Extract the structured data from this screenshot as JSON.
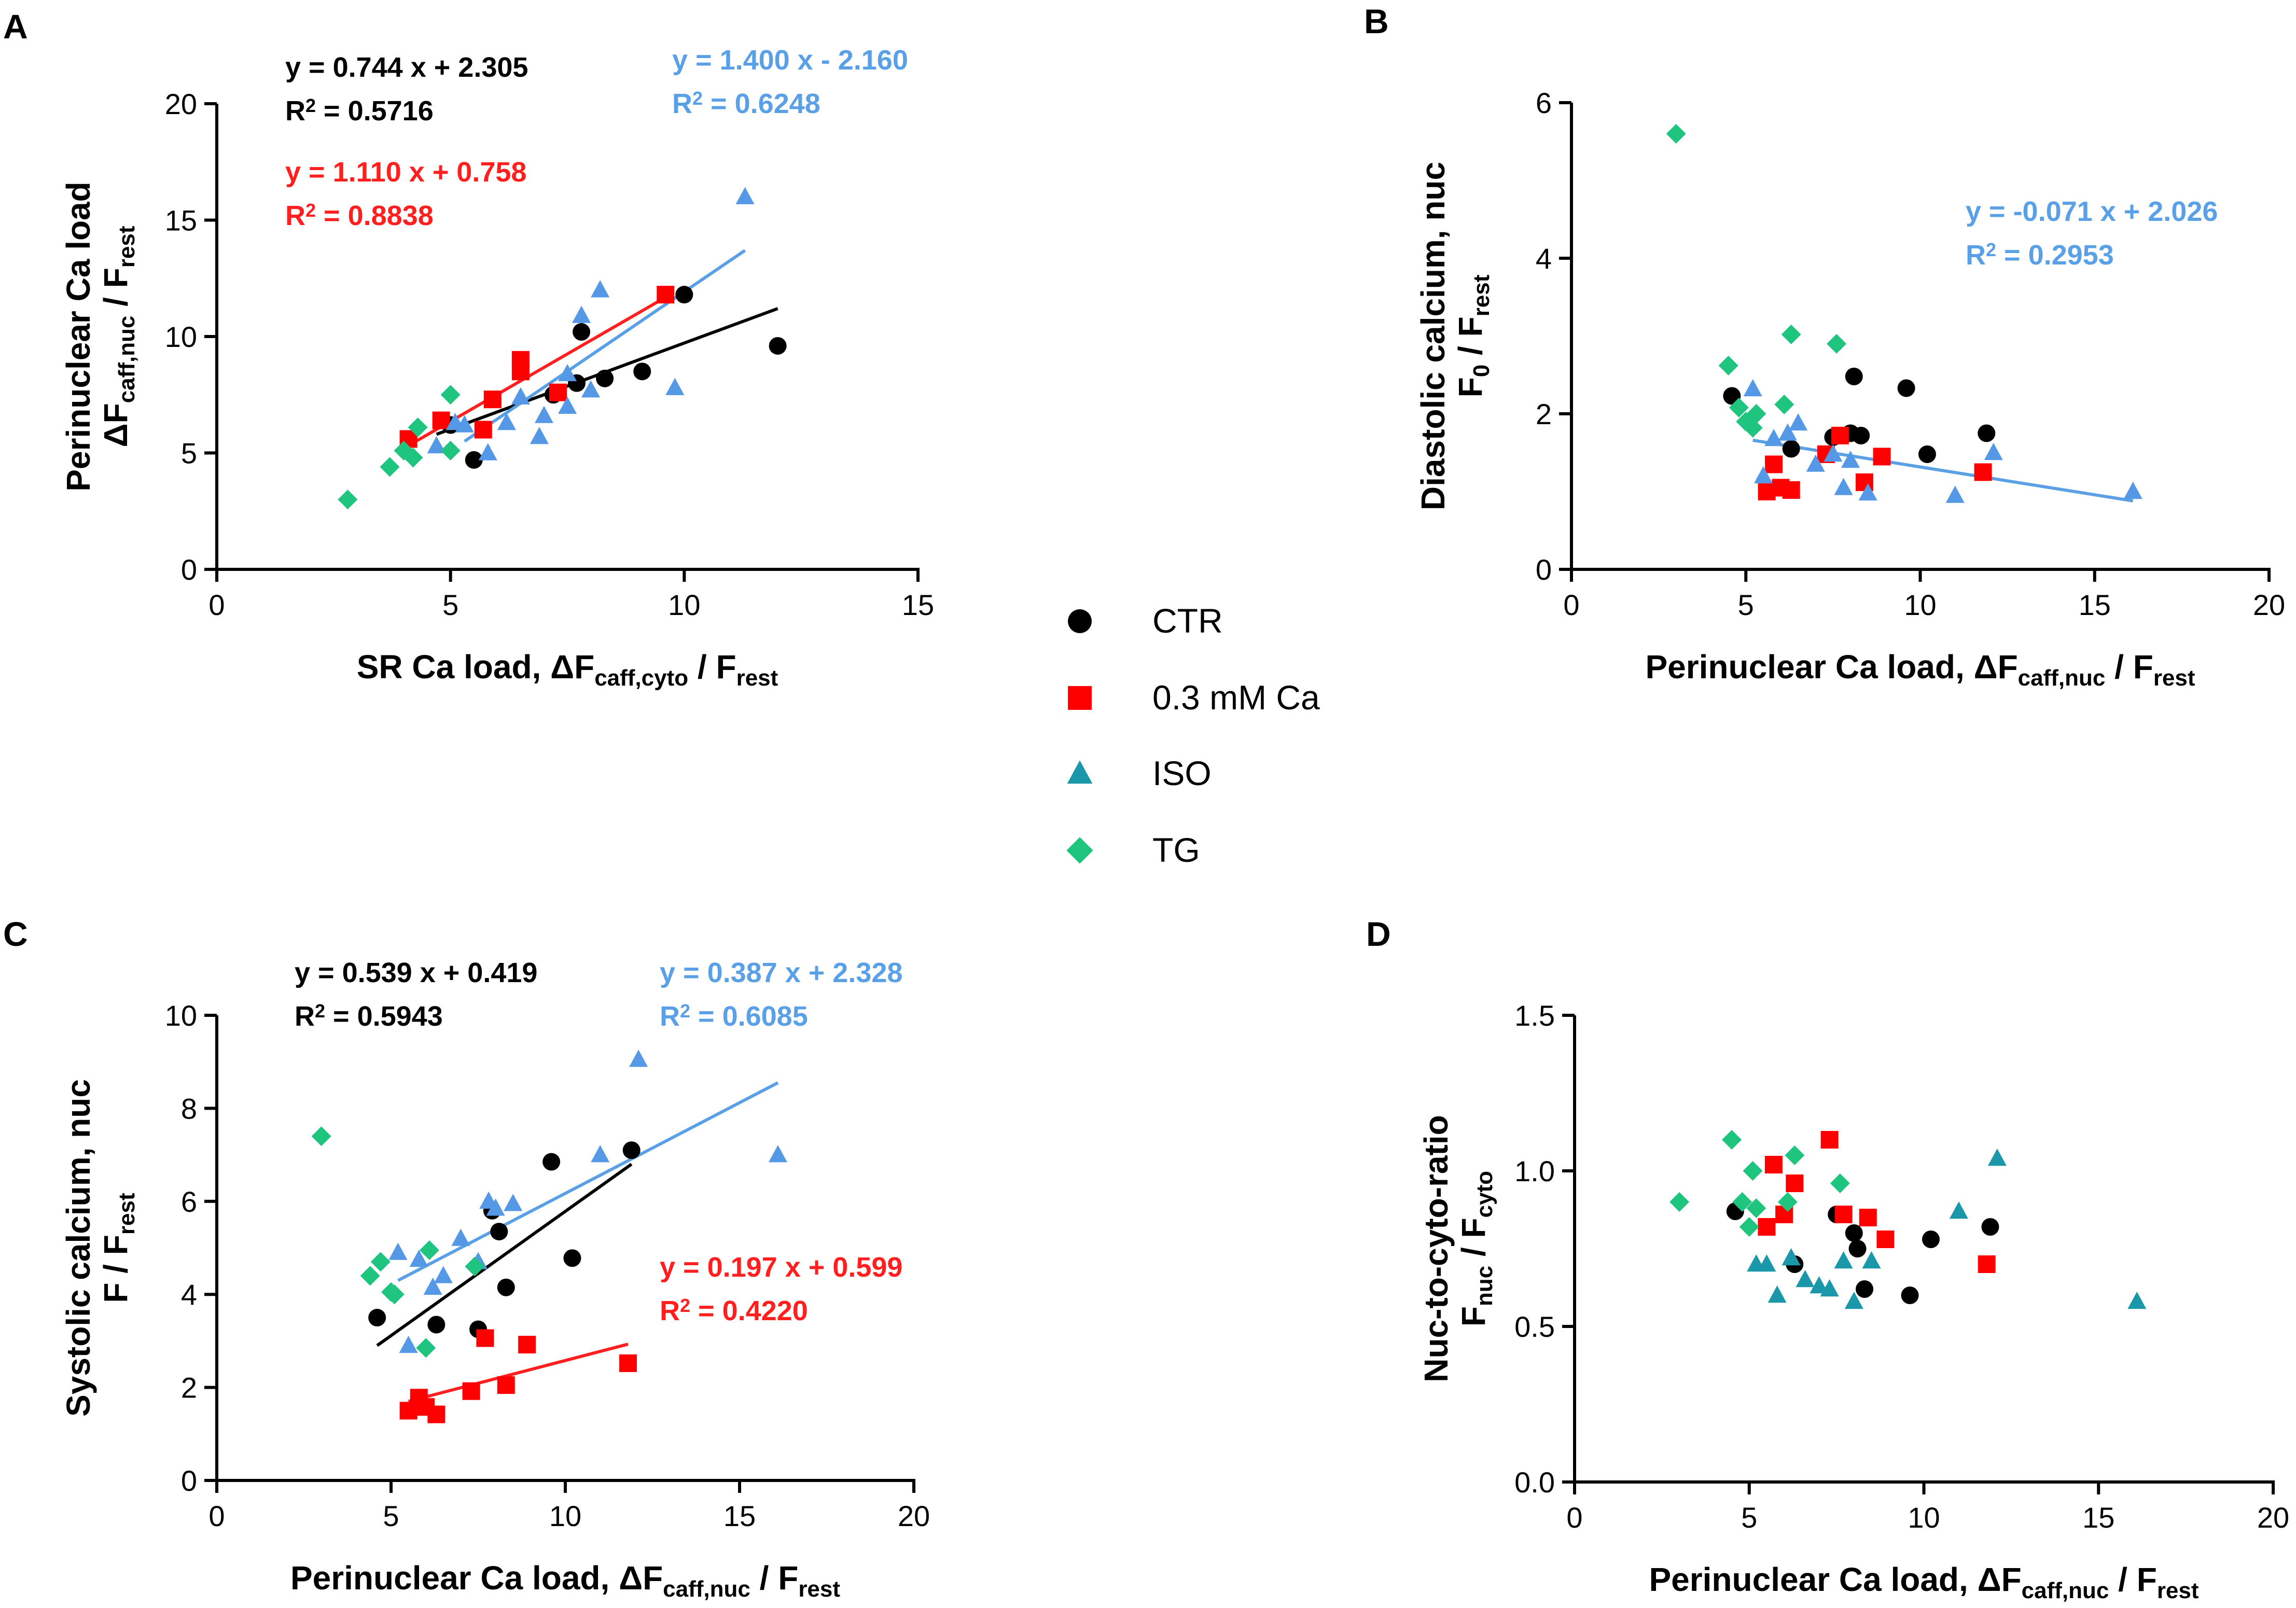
{
  "colors": {
    "ctr": "#000000",
    "ca03": "#ff0000",
    "iso_blue": "#5599e6",
    "iso_teal": "#1a98aa",
    "tg": "#1fc47f",
    "fit_black": "#000000",
    "fit_red": "#ff1f1f",
    "fit_blue": "#5aa0e6"
  },
  "legend": [
    {
      "key": "ctr",
      "label": "CTR",
      "marker": "circle"
    },
    {
      "key": "ca03",
      "label": "0.3 mM Ca",
      "marker": "square"
    },
    {
      "key": "iso",
      "label": "ISO",
      "marker": "triangle"
    },
    {
      "key": "tg",
      "label": "TG",
      "marker": "diamond"
    }
  ],
  "chart_data": [
    {
      "panel": "A",
      "type": "scatter",
      "xlabel": {
        "pre": "SR Ca load, ΔF",
        "sub1": "caff,cyto",
        "mid": " / F",
        "sub2": "rest"
      },
      "ylabel_line1": "Perinuclear Ca load",
      "ylabel_line2": {
        "pre": "ΔF",
        "sub1": "caff,nuc",
        "mid": " / F",
        "sub2": "rest"
      },
      "xlim": [
        0,
        15
      ],
      "ylim": [
        0,
        20
      ],
      "xticks": [
        "0",
        "5",
        "10",
        "15"
      ],
      "yticks": [
        "0",
        "5",
        "10",
        "15",
        "20"
      ],
      "series": [
        {
          "name": "CTR",
          "x": [
            5.0,
            5.5,
            7.2,
            7.7,
            7.8,
            8.3,
            9.1,
            10.0,
            12.0
          ],
          "y": [
            6.2,
            4.7,
            7.5,
            8.0,
            10.2,
            8.2,
            8.5,
            11.8,
            9.6
          ]
        },
        {
          "name": "0.3 mM Ca",
          "x": [
            4.1,
            4.8,
            5.7,
            5.9,
            6.5,
            6.5,
            7.3,
            9.6
          ],
          "y": [
            5.6,
            6.4,
            6.0,
            7.3,
            8.5,
            9.0,
            7.6,
            11.8
          ]
        },
        {
          "name": "ISO",
          "x": [
            4.7,
            5.1,
            5.3,
            5.8,
            6.2,
            6.5,
            6.9,
            7.0,
            7.5,
            7.5,
            7.8,
            8.0,
            8.2,
            9.8,
            11.3
          ],
          "y": [
            5.3,
            6.3,
            6.2,
            5.0,
            6.3,
            7.4,
            5.7,
            6.6,
            7.0,
            8.4,
            10.9,
            7.7,
            12.0,
            7.8,
            16.0
          ]
        },
        {
          "name": "TG",
          "x": [
            2.8,
            3.7,
            4.0,
            4.2,
            4.3,
            5.0,
            5.0
          ],
          "y": [
            3.0,
            4.4,
            5.1,
            4.8,
            6.1,
            5.1,
            7.5
          ]
        }
      ],
      "fits": [
        {
          "series": "CTR",
          "x": [
            4.7,
            12.0
          ],
          "y": [
            5.8,
            11.2
          ],
          "equation": "y = 0.744 x + 2.305",
          "r2_value": " = 0.5716"
        },
        {
          "series": "0.3 mM Ca",
          "x": [
            4.0,
            9.7
          ],
          "y": [
            5.2,
            11.8
          ],
          "equation": "y = 1.110 x + 0.758",
          "r2_value": " = 0.8838"
        },
        {
          "series": "ISO",
          "x": [
            5.3,
            11.3
          ],
          "y": [
            5.5,
            13.7
          ],
          "equation": "y = 1.400 x - 2.160",
          "r2_value": " = 0.6248"
        }
      ]
    },
    {
      "panel": "B",
      "type": "scatter",
      "xlabel": {
        "pre": "Perinuclear Ca load, ΔF",
        "sub1": "caff,nuc",
        "mid": " / F",
        "sub2": "rest"
      },
      "ylabel_line1": "Diastolic calcium, nuc",
      "ylabel_line2": {
        "pre": "F",
        "sub1": "0",
        "mid": " / F",
        "sub2": "rest"
      },
      "xlim": [
        0,
        20
      ],
      "ylim": [
        0,
        6
      ],
      "xticks": [
        "0",
        "5",
        "10",
        "15",
        "20"
      ],
      "yticks": [
        "0",
        "2",
        "4",
        "6"
      ],
      "series": [
        {
          "name": "CTR",
          "x": [
            4.6,
            6.3,
            7.5,
            8.0,
            8.1,
            8.3,
            9.6,
            10.2,
            11.9
          ],
          "y": [
            2.23,
            1.55,
            1.7,
            1.75,
            2.48,
            1.72,
            2.33,
            1.48,
            1.75
          ]
        },
        {
          "name": "0.3 mM Ca",
          "x": [
            5.6,
            5.8,
            6.0,
            6.3,
            7.3,
            7.7,
            8.4,
            8.9,
            11.8
          ],
          "y": [
            1.0,
            1.35,
            1.05,
            1.02,
            1.48,
            1.72,
            1.12,
            1.45,
            1.25
          ]
        },
        {
          "name": "ISO",
          "x": [
            5.2,
            5.5,
            5.8,
            6.2,
            6.5,
            7.0,
            7.5,
            7.8,
            8.0,
            8.5,
            11.0,
            12.1,
            16.1
          ],
          "y": [
            2.32,
            1.2,
            1.68,
            1.75,
            1.88,
            1.35,
            1.48,
            1.05,
            1.4,
            0.98,
            0.95,
            1.5,
            1.0
          ]
        },
        {
          "name": "TG",
          "x": [
            3.0,
            4.5,
            4.8,
            5.0,
            5.2,
            5.3,
            6.1,
            6.3,
            7.6
          ],
          "y": [
            5.6,
            2.62,
            2.08,
            1.9,
            1.82,
            2.0,
            2.12,
            3.02,
            2.9
          ]
        }
      ],
      "fits": [
        {
          "series": "ISO",
          "x": [
            5.2,
            16.1
          ],
          "y": [
            1.66,
            0.88
          ],
          "equation": "y = -0.071 x + 2.026",
          "r2_value": " = 0.2953"
        }
      ]
    },
    {
      "panel": "C",
      "type": "scatter",
      "xlabel": {
        "pre": "Perinuclear Ca load, ΔF",
        "sub1": "caff,nuc",
        "mid": " / F",
        "sub2": "rest"
      },
      "ylabel_line1": "Systolic calcium, nuc",
      "ylabel_line2": {
        "pre": "F / F",
        "sub1": "",
        "mid": "",
        "sub2": "rest"
      },
      "xlim": [
        0,
        20
      ],
      "ylim": [
        0,
        10
      ],
      "xticks": [
        "0",
        "5",
        "10",
        "15",
        "20"
      ],
      "yticks": [
        "0",
        "2",
        "4",
        "6",
        "8",
        "10"
      ],
      "series": [
        {
          "name": "CTR",
          "x": [
            4.6,
            6.3,
            7.5,
            7.9,
            8.1,
            8.3,
            9.6,
            10.2,
            11.9
          ],
          "y": [
            3.5,
            3.35,
            3.25,
            5.8,
            5.35,
            4.15,
            6.85,
            4.78,
            7.1
          ]
        },
        {
          "name": "0.3 mM Ca",
          "x": [
            5.5,
            5.8,
            6.0,
            6.3,
            7.3,
            7.7,
            8.3,
            8.9,
            11.8
          ],
          "y": [
            1.5,
            1.78,
            1.58,
            1.42,
            1.92,
            3.06,
            2.05,
            2.92,
            2.52
          ]
        },
        {
          "name": "ISO",
          "x": [
            5.2,
            5.5,
            5.8,
            6.2,
            6.5,
            7.0,
            7.5,
            7.8,
            8.0,
            8.5,
            11.0,
            12.1,
            16.1
          ],
          "y": [
            4.9,
            2.9,
            4.75,
            4.15,
            4.4,
            5.2,
            4.7,
            6.0,
            5.85,
            5.95,
            7.0,
            9.05,
            7.0
          ]
        },
        {
          "name": "TG",
          "x": [
            3.0,
            4.4,
            4.7,
            5.0,
            5.1,
            6.0,
            6.1,
            7.4
          ],
          "y": [
            7.4,
            4.4,
            4.7,
            4.05,
            4.0,
            2.85,
            4.95,
            4.6
          ]
        }
      ],
      "fits": [
        {
          "series": "CTR",
          "x": [
            4.6,
            11.9
          ],
          "y": [
            2.9,
            6.8
          ],
          "equation": "y = 0.539 x + 0.419",
          "r2_value": " = 0.5943"
        },
        {
          "series": "0.3 mM Ca",
          "x": [
            5.5,
            11.8
          ],
          "y": [
            1.7,
            2.93
          ],
          "equation": "y = 0.197 x + 0.599",
          "r2_value": " = 0.4220"
        },
        {
          "series": "ISO",
          "x": [
            5.2,
            16.1
          ],
          "y": [
            4.3,
            8.55
          ],
          "equation": "y = 0.387 x + 2.328",
          "r2_value": " = 0.6085"
        }
      ]
    },
    {
      "panel": "D",
      "type": "scatter",
      "xlabel": {
        "pre": "Perinuclear Ca load, ΔF",
        "sub1": "caff,nuc",
        "mid": " / F",
        "sub2": "rest"
      },
      "ylabel_line1": "Nuc-to-cyto-ratio",
      "ylabel_line2": {
        "pre": "F",
        "sub1": "nuc",
        "mid": " / F",
        "sub2": "cyto"
      },
      "xlim": [
        0,
        20
      ],
      "ylim": [
        0,
        1.5
      ],
      "xticks": [
        "0",
        "5",
        "10",
        "15",
        "20"
      ],
      "yticks": [
        "0.0",
        "0.5",
        "1.0",
        "1.5"
      ],
      "series": [
        {
          "name": "CTR",
          "x": [
            4.6,
            6.3,
            7.5,
            8.0,
            8.1,
            8.3,
            9.6,
            10.2,
            11.9
          ],
          "y": [
            0.87,
            0.7,
            0.86,
            0.8,
            0.75,
            0.62,
            0.6,
            0.78,
            0.82
          ]
        },
        {
          "name": "0.3 mM Ca",
          "x": [
            5.5,
            5.7,
            6.0,
            6.3,
            7.3,
            7.7,
            8.4,
            8.9,
            11.8
          ],
          "y": [
            0.82,
            1.02,
            0.86,
            0.96,
            1.1,
            0.86,
            0.85,
            0.78,
            0.7
          ]
        },
        {
          "name": "ISO",
          "x": [
            5.2,
            5.5,
            5.8,
            6.2,
            6.6,
            7.0,
            7.3,
            7.7,
            8.0,
            8.5,
            11.0,
            12.1,
            16.1
          ],
          "y": [
            0.7,
            0.7,
            0.6,
            0.72,
            0.65,
            0.63,
            0.62,
            0.71,
            0.58,
            0.71,
            0.87,
            1.04,
            0.58
          ]
        },
        {
          "name": "TG",
          "x": [
            3.0,
            4.5,
            4.8,
            5.0,
            5.1,
            5.2,
            6.1,
            6.3,
            7.6
          ],
          "y": [
            0.9,
            1.1,
            0.9,
            0.82,
            1.0,
            0.88,
            0.9,
            1.05,
            0.96
          ]
        }
      ],
      "fits": []
    }
  ]
}
